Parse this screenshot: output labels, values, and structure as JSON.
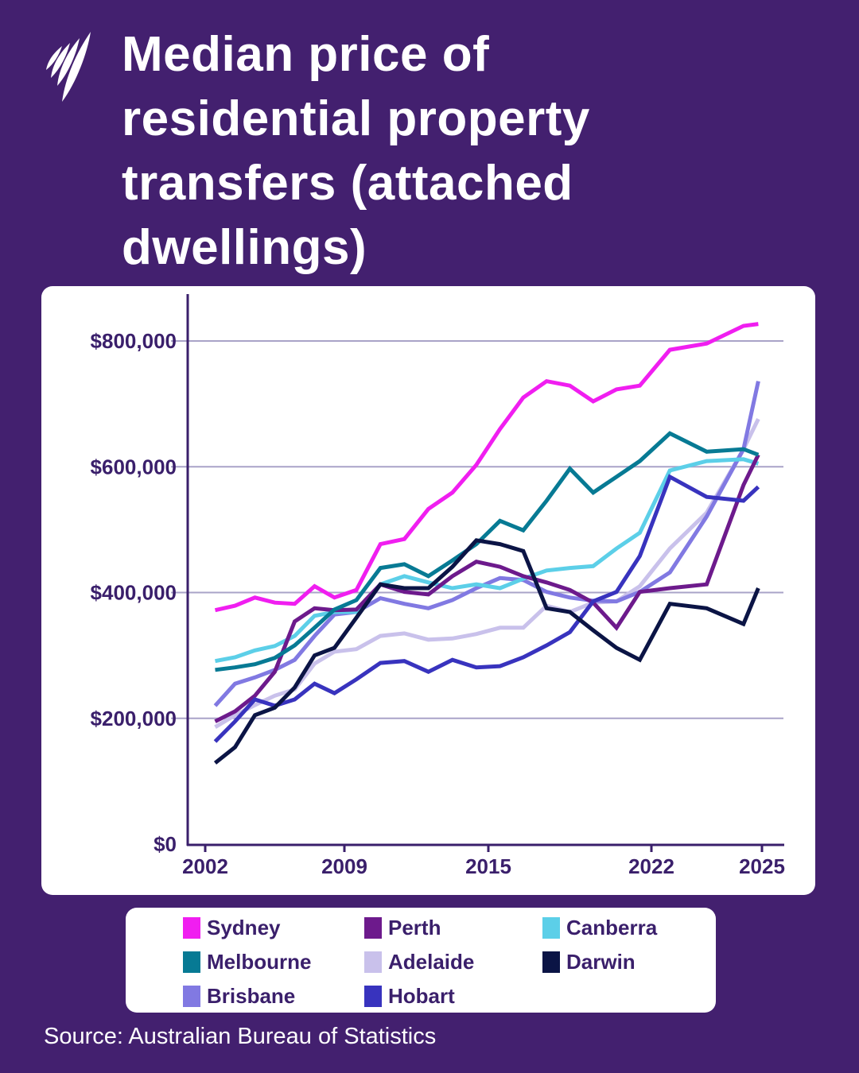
{
  "title_lines": [
    "Median price of",
    "residential property",
    "transfers (attached",
    "dwellings)"
  ],
  "source": "Source: Australian Bureau of Statistics",
  "colors": {
    "background": "#43206f",
    "text": "#3a1f6b",
    "grid": "#a9a3c8"
  },
  "chart_data": {
    "type": "line",
    "title": "Median price of residential property transfers (attached dwellings)",
    "xlabel": "",
    "ylabel": "",
    "ylim": [
      0,
      800000
    ],
    "xlim": [
      2002,
      2025
    ],
    "yticks": [
      0,
      200000,
      400000,
      600000,
      800000
    ],
    "ytick_labels": [
      "$0",
      "$200,000",
      "$400,000",
      "$600,000",
      "$800,000"
    ],
    "xticks": [
      2002,
      2009,
      2015,
      2022,
      2025
    ],
    "xtick_labels": [
      "2002",
      "2009",
      "2015",
      "2022",
      "2025"
    ],
    "grid": "horizontal",
    "legend_placement": "bottom",
    "x": [
      2002.5,
      2003.5,
      2004.5,
      2005.5,
      2006.5,
      2007.5,
      2008.5,
      2009.5,
      2010.5,
      2011.5,
      2012.5,
      2013.5,
      2014.5,
      2015.5,
      2016.5,
      2017.5,
      2018.5,
      2019.5,
      2020.5,
      2021.5,
      2022.5,
      2023.5,
      2024.5,
      2024.9
    ],
    "series": [
      {
        "name": "Sydney",
        "color": "#f01ef0",
        "values": [
          372000,
          379000,
          392000,
          384000,
          382000,
          410000,
          392000,
          404000,
          477000,
          485000,
          533000,
          559000,
          603000,
          660000,
          710000,
          736000,
          729000,
          704000,
          723000,
          729000,
          786000,
          796000,
          824000,
          827000
        ]
      },
      {
        "name": "Melbourne",
        "color": "#077a94",
        "values": [
          277000,
          281000,
          286000,
          296000,
          316000,
          344000,
          373000,
          388000,
          439000,
          445000,
          426000,
          451000,
          477000,
          514000,
          499000,
          546000,
          597000,
          559000,
          584000,
          609000,
          653000,
          624000,
          628000,
          619000
        ]
      },
      {
        "name": "Brisbane",
        "color": "#8179e2",
        "values": [
          220000,
          255000,
          265000,
          277000,
          293000,
          331000,
          365000,
          369000,
          391000,
          382000,
          375000,
          388000,
          407000,
          423000,
          420000,
          401000,
          392000,
          387000,
          386000,
          401000,
          432000,
          521000,
          628000,
          736000
        ]
      },
      {
        "name": "Perth",
        "color": "#6d1a8c",
        "values": [
          195000,
          211000,
          236000,
          274000,
          354000,
          375000,
          372000,
          373000,
          413000,
          401000,
          397000,
          426000,
          449000,
          441000,
          426000,
          416000,
          404000,
          384000,
          344000,
          401000,
          407000,
          413000,
          571000,
          619000
        ]
      },
      {
        "name": "Adelaide",
        "color": "#c9c1eb",
        "values": [
          186000,
          205000,
          221000,
          236000,
          246000,
          287000,
          306000,
          310000,
          331000,
          335000,
          325000,
          327000,
          334000,
          344000,
          344000,
          379000,
          369000,
          384000,
          386000,
          410000,
          470000,
          527000,
          628000,
          676000
        ]
      },
      {
        "name": "Hobart",
        "color": "#3833be",
        "values": [
          163000,
          195000,
          230000,
          220000,
          230000,
          255000,
          240000,
          262000,
          288000,
          291000,
          274000,
          293000,
          281000,
          283000,
          297000,
          316000,
          337000,
          386000,
          401000,
          458000,
          584000,
          552000,
          546000,
          568000
        ]
      },
      {
        "name": "Canberra",
        "color": "#5ccfe8",
        "values": [
          291000,
          297000,
          308000,
          315000,
          331000,
          363000,
          369000,
          369000,
          413000,
          426000,
          416000,
          407000,
          413000,
          407000,
          422000,
          435000,
          439000,
          442000,
          470000,
          495000,
          594000,
          609000,
          612000,
          605000
        ]
      },
      {
        "name": "Darwin",
        "color": "#0b1445",
        "values": [
          129000,
          154000,
          205000,
          217000,
          249000,
          300000,
          312000,
          360000,
          413000,
          407000,
          407000,
          441000,
          483000,
          477000,
          466000,
          375000,
          369000,
          340000,
          312000,
          293000,
          382000,
          375000,
          350000,
          407000
        ]
      }
    ]
  }
}
